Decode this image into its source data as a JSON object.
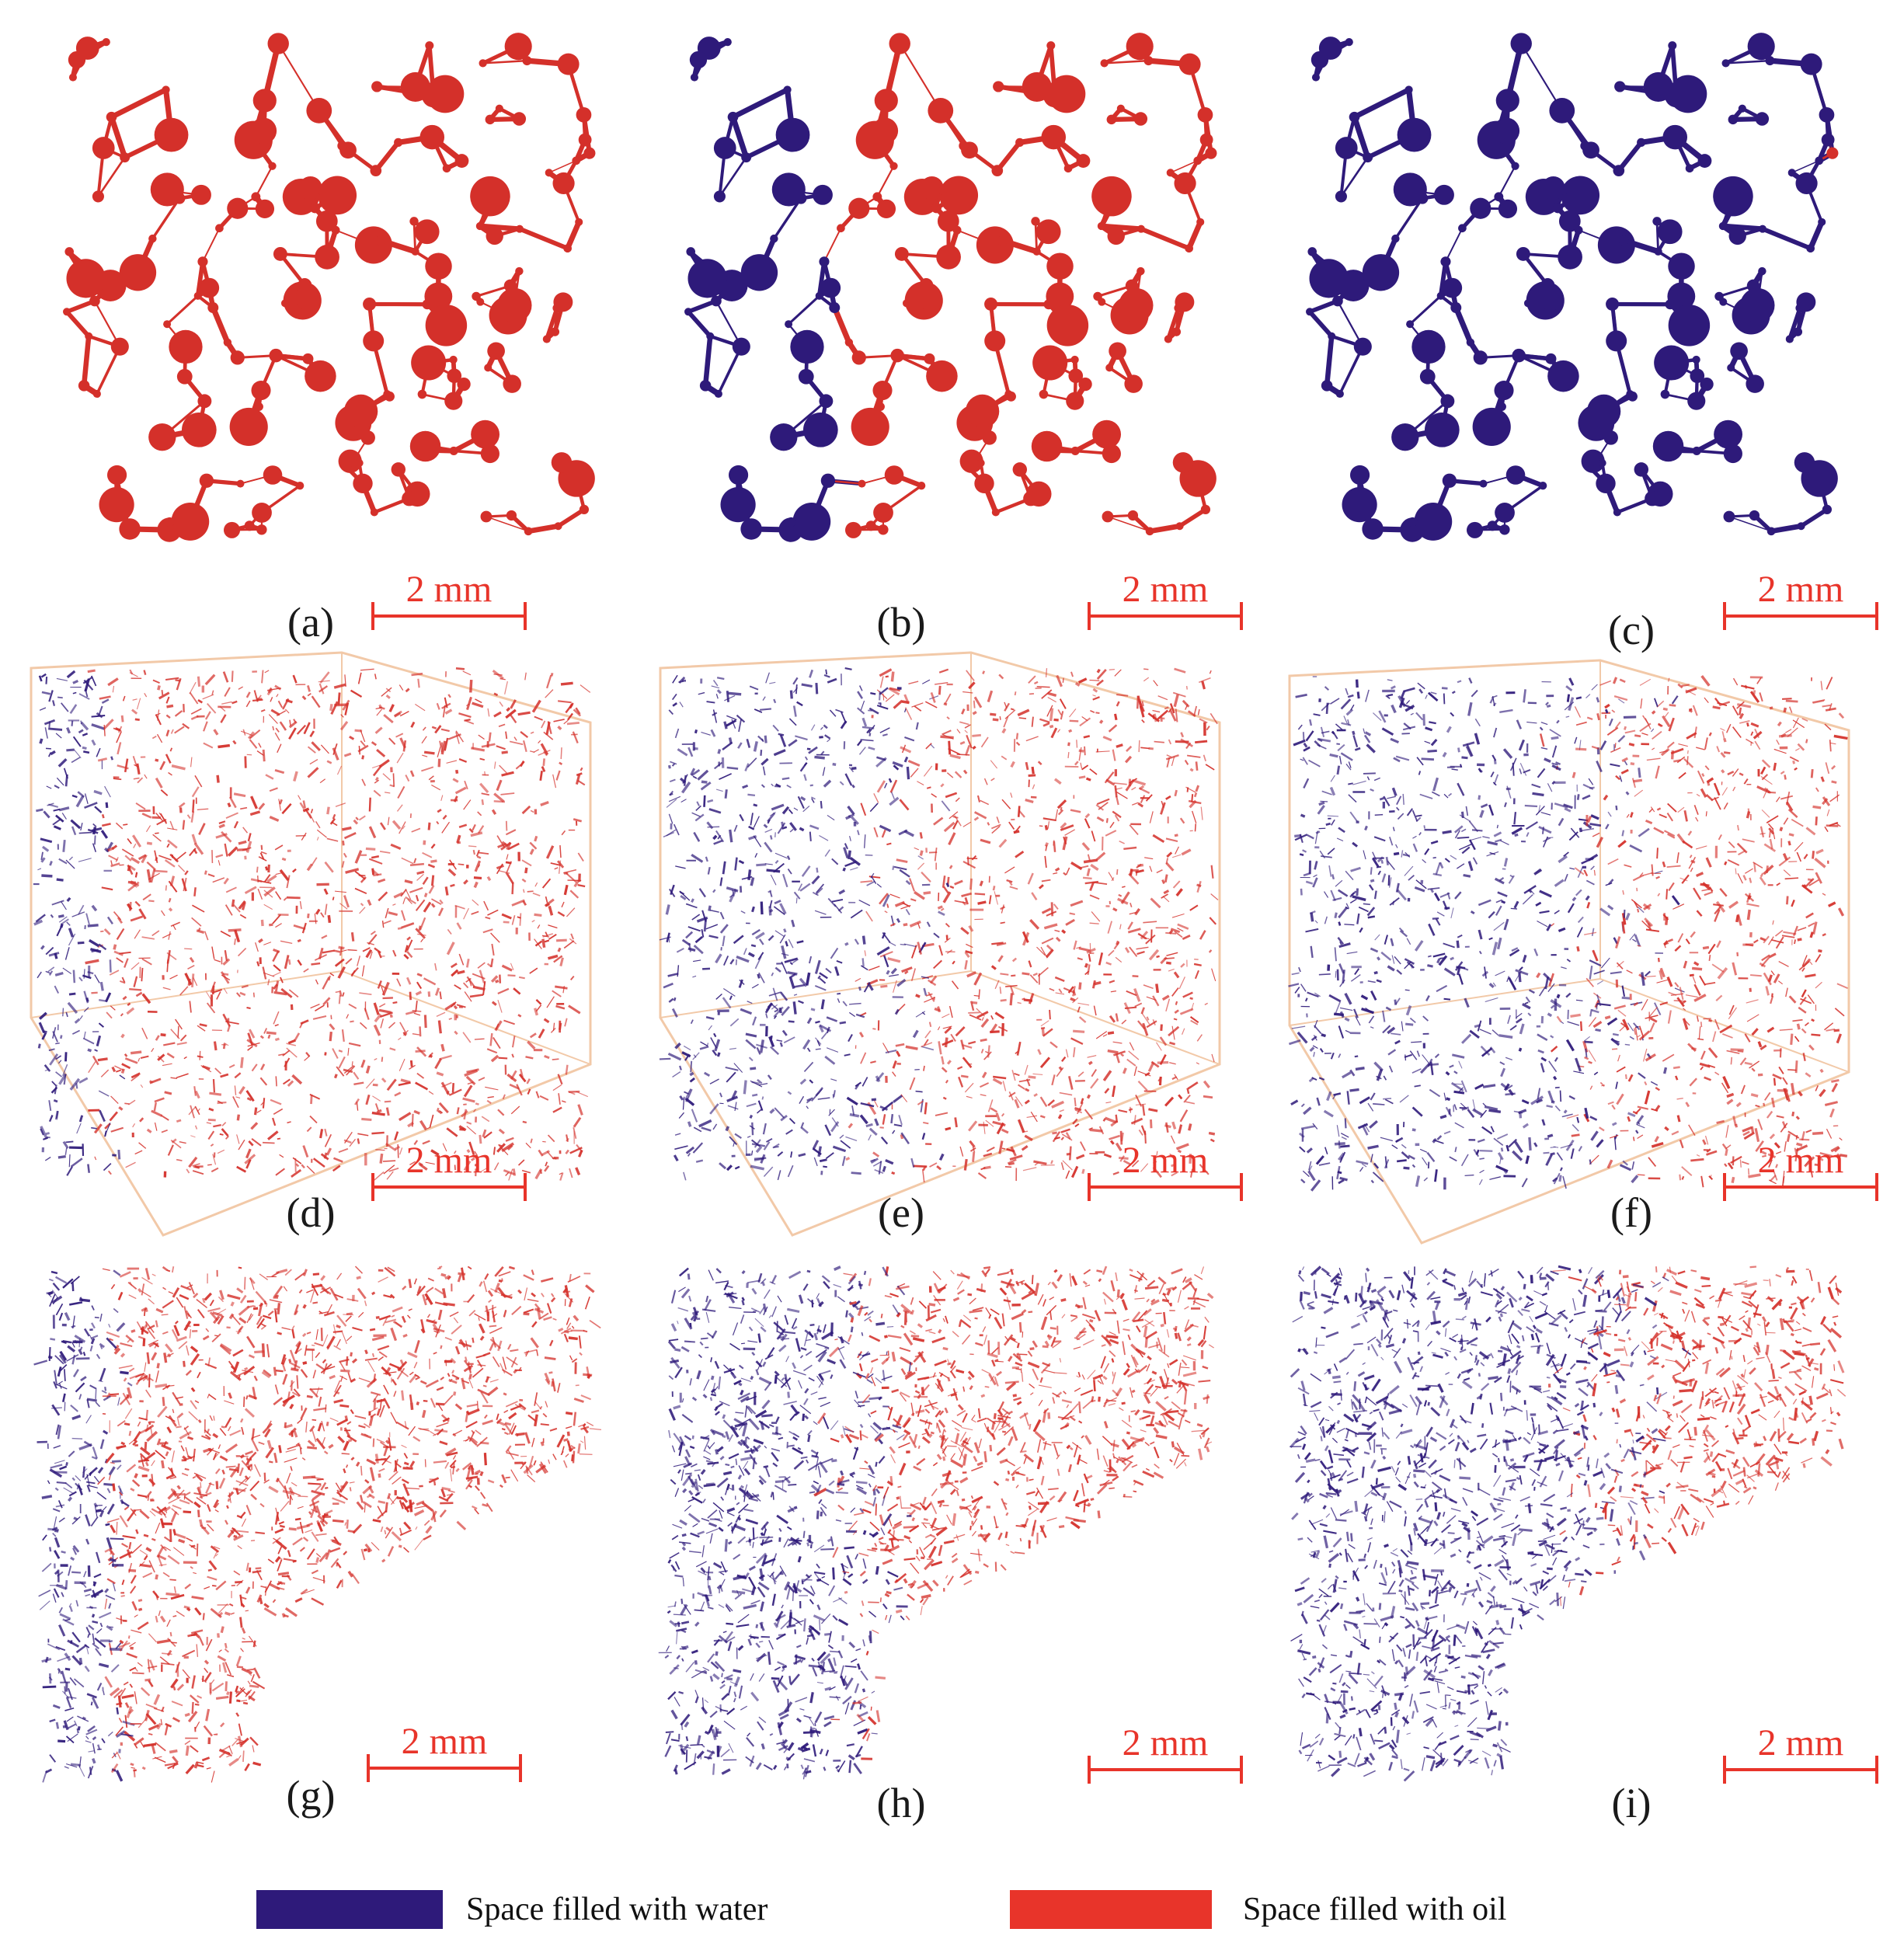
{
  "colors": {
    "water": "#2e1a7a",
    "oil": "#d4302a",
    "scale": "#e8342a",
    "box": "#f2c9a8"
  },
  "panels": [
    {
      "label": "(a)",
      "scale": "2 mm",
      "kind": "network",
      "water_frac": 0.0
    },
    {
      "label": "(b)",
      "scale": "2 mm",
      "kind": "network",
      "water_frac": 0.3
    },
    {
      "label": "(c)",
      "scale": "2 mm",
      "kind": "network",
      "water_frac": 0.9
    },
    {
      "label": "(d)",
      "scale": "2 mm",
      "kind": "box-cloud",
      "water_frac": 0.12
    },
    {
      "label": "(e)",
      "scale": "2 mm",
      "kind": "box-cloud",
      "water_frac": 0.4
    },
    {
      "label": "(f)",
      "scale": "2 mm",
      "kind": "box-cloud",
      "water_frac": 0.55
    },
    {
      "label": "(g)",
      "scale": "2 mm",
      "kind": "cloud",
      "water_frac": 0.12
    },
    {
      "label": "(h)",
      "scale": "2 mm",
      "kind": "cloud",
      "water_frac": 0.35
    },
    {
      "label": "(i)",
      "scale": "2 mm",
      "kind": "cloud",
      "water_frac": 0.55
    }
  ],
  "legend": {
    "water_label": "Space filled with water",
    "oil_label": "Space filled with oil"
  }
}
